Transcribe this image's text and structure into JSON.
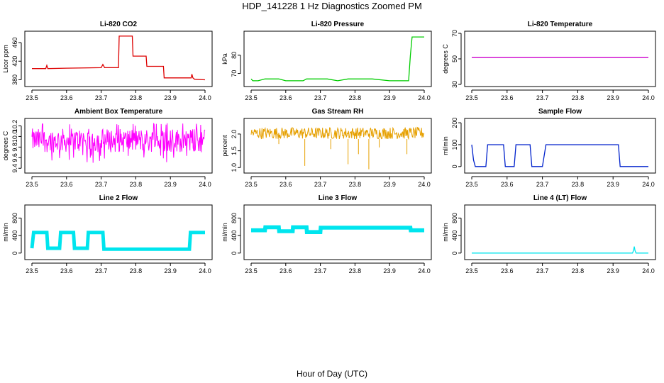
{
  "figure": {
    "title": "HDP_141228  1 Hz Diagnostics Zoomed PM",
    "xlabel": "Hour of Day (UTC)"
  },
  "chart_data": [
    {
      "type": "line",
      "title": "Li-820 CO2",
      "ylabel": "Licor ppm",
      "xlim": [
        23.5,
        24.0
      ],
      "xticks": [
        23.5,
        23.6,
        23.7,
        23.8,
        23.9,
        24.0
      ],
      "xtick_labels": [
        "23.5",
        "23.6",
        "23.7",
        "23.8",
        "23.9",
        "24.0"
      ],
      "ylim": [
        370,
        480
      ],
      "yticks": [
        380,
        420,
        460
      ],
      "ytick_labels": [
        "380",
        "420",
        "460"
      ],
      "color": "#dd0000",
      "series": [
        {
          "x": [
            23.5,
            23.54,
            23.543,
            23.546,
            23.6,
            23.7,
            23.705,
            23.71,
            23.75,
            23.752,
            23.79,
            23.792,
            23.83,
            23.832,
            23.88,
            23.882,
            23.96,
            23.962,
            23.965,
            23.97,
            24.0
          ],
          "y": [
            404,
            404,
            411,
            404,
            405,
            406,
            413,
            406,
            406,
            474,
            474,
            431,
            431,
            409,
            409,
            384,
            384,
            392,
            384,
            381,
            380
          ]
        }
      ]
    },
    {
      "type": "line",
      "title": "Li-820 Pressure",
      "ylabel": "kPa",
      "xlim": [
        23.5,
        24.0
      ],
      "xticks": [
        23.5,
        23.6,
        23.7,
        23.8,
        23.9,
        24.0
      ],
      "xtick_labels": [
        "23.5",
        "23.6",
        "23.7",
        "23.8",
        "23.9",
        "24.0"
      ],
      "ylim": [
        64,
        92
      ],
      "yticks": [
        70,
        80
      ],
      "ytick_labels": [
        "70",
        "80"
      ],
      "color": "#00cc00",
      "series": [
        {
          "x": [
            23.5,
            23.505,
            23.52,
            23.54,
            23.58,
            23.6,
            23.65,
            23.66,
            23.7,
            23.72,
            23.75,
            23.78,
            23.85,
            23.9,
            23.95,
            23.955,
            23.96,
            23.965,
            24.0
          ],
          "y": [
            67,
            66,
            66,
            67,
            67,
            66,
            66,
            67,
            67,
            67,
            66,
            67,
            67,
            66,
            66,
            66,
            80,
            90,
            90
          ]
        }
      ]
    },
    {
      "type": "line",
      "title": "Li-820 Temperature",
      "ylabel": "degrees C",
      "xlim": [
        23.5,
        24.0
      ],
      "xticks": [
        23.5,
        23.6,
        23.7,
        23.8,
        23.9,
        24.0
      ],
      "xtick_labels": [
        "23.5",
        "23.6",
        "23.7",
        "23.8",
        "23.9",
        "24.0"
      ],
      "ylim": [
        30,
        70
      ],
      "yticks": [
        30,
        50,
        70
      ],
      "ytick_labels": [
        "30",
        "50",
        "70"
      ],
      "color": "#cc00cc",
      "series": [
        {
          "x": [
            23.5,
            24.0
          ],
          "y": [
            51,
            51
          ]
        }
      ]
    },
    {
      "type": "line",
      "title": "Ambient Box Temperature",
      "ylabel": "degrees C",
      "xlim": [
        23.5,
        24.0
      ],
      "xticks": [
        23.5,
        23.6,
        23.7,
        23.8,
        23.9,
        24.0
      ],
      "xtick_labels": [
        "23.5",
        "23.6",
        "23.7",
        "23.8",
        "23.9",
        "24.0"
      ],
      "ylim": [
        9.35,
        10.3
      ],
      "yticks": [
        9.4,
        9.6,
        9.8,
        10.0,
        10.2
      ],
      "ytick_labels": [
        "9.4",
        "9.6",
        "9.8",
        "10.0",
        "10.2"
      ],
      "color": "#ff00ff",
      "noise": {
        "low": 9.7,
        "high": 10.15,
        "spike_low": 9.5,
        "spike_high": 10.25
      },
      "series": [
        {
          "x": [
            23.5,
            24.0
          ],
          "y": [
            9.92,
            9.92
          ]
        }
      ]
    },
    {
      "type": "line",
      "title": "Gas Stream RH",
      "ylabel": "percent",
      "xlim": [
        23.5,
        24.0
      ],
      "xticks": [
        23.5,
        23.6,
        23.7,
        23.8,
        23.9,
        24.0
      ],
      "xtick_labels": [
        "23.5",
        "23.6",
        "23.7",
        "23.8",
        "23.9",
        "24.0"
      ],
      "ylim": [
        0.9,
        2.4
      ],
      "yticks": [
        1.0,
        1.5,
        2.0
      ],
      "ytick_labels": [
        "1.0",
        "1.5",
        "2.0"
      ],
      "color": "#e6a000",
      "noise": {
        "low": 1.85,
        "high": 2.2
      },
      "dips": [
        {
          "x": 23.58,
          "y": 1.7
        },
        {
          "x": 23.655,
          "y": 1.05
        },
        {
          "x": 23.73,
          "y": 1.55
        },
        {
          "x": 23.78,
          "y": 1.1
        },
        {
          "x": 23.81,
          "y": 1.4
        },
        {
          "x": 23.84,
          "y": 0.95
        },
        {
          "x": 23.87,
          "y": 1.6
        },
        {
          "x": 23.95,
          "y": 1.4
        }
      ],
      "series": [
        {
          "x": [
            23.5,
            24.0
          ],
          "y": [
            2.05,
            2.05
          ]
        }
      ]
    },
    {
      "type": "line",
      "title": "Sample Flow",
      "ylabel": "ml/min",
      "xlim": [
        23.5,
        24.0
      ],
      "xticks": [
        23.5,
        23.6,
        23.7,
        23.8,
        23.9,
        24.0
      ],
      "xtick_labels": [
        "23.5",
        "23.6",
        "23.7",
        "23.8",
        "23.9",
        "24.0"
      ],
      "ylim": [
        -20,
        210
      ],
      "yticks": [
        0,
        100,
        200
      ],
      "ytick_labels": [
        "0",
        "100",
        "200"
      ],
      "color": "#0022cc",
      "series": [
        {
          "x": [
            23.5,
            23.505,
            23.51,
            23.54,
            23.545,
            23.59,
            23.595,
            23.62,
            23.625,
            23.665,
            23.67,
            23.7,
            23.71,
            23.915,
            23.92,
            24.0
          ],
          "y": [
            100,
            30,
            0,
            0,
            100,
            100,
            0,
            0,
            100,
            100,
            0,
            0,
            100,
            100,
            0,
            0
          ]
        }
      ]
    },
    {
      "type": "line",
      "title": "Line 2 Flow",
      "ylabel": "ml/min",
      "xlim": [
        23.5,
        24.0
      ],
      "xticks": [
        23.5,
        23.6,
        23.7,
        23.8,
        23.9,
        24.0
      ],
      "xtick_labels": [
        "23.5",
        "23.6",
        "23.7",
        "23.8",
        "23.9",
        "24.0"
      ],
      "ylim": [
        -100,
        1050
      ],
      "yticks": [
        0,
        400,
        800
      ],
      "ytick_labels": [
        "0",
        "400",
        "800"
      ],
      "color": "#00e5ee",
      "band": 80,
      "series": [
        {
          "x": [
            23.5,
            23.505,
            23.543,
            23.546,
            23.58,
            23.583,
            23.62,
            23.623,
            23.66,
            23.663,
            23.705,
            23.708,
            23.955,
            23.958,
            24.0
          ],
          "y": [
            110,
            470,
            470,
            110,
            110,
            470,
            470,
            110,
            110,
            470,
            470,
            90,
            90,
            470,
            470
          ]
        }
      ]
    },
    {
      "type": "line",
      "title": "Line 3 Flow",
      "ylabel": "ml/min",
      "xlim": [
        23.5,
        24.0
      ],
      "xticks": [
        23.5,
        23.6,
        23.7,
        23.8,
        23.9,
        24.0
      ],
      "xtick_labels": [
        "23.5",
        "23.6",
        "23.7",
        "23.8",
        "23.9",
        "24.0"
      ],
      "ylim": [
        -100,
        1050
      ],
      "yticks": [
        0,
        400,
        800
      ],
      "ytick_labels": [
        "0",
        "400",
        "800"
      ],
      "color": "#00e5ee",
      "band": 90,
      "series": [
        {
          "x": [
            23.5,
            23.54,
            23.541,
            23.58,
            23.581,
            23.62,
            23.621,
            23.66,
            23.661,
            23.7,
            23.701,
            23.96,
            23.961,
            24.0
          ],
          "y": [
            520,
            520,
            590,
            590,
            500,
            500,
            590,
            590,
            480,
            480,
            580,
            580,
            520,
            520
          ]
        }
      ]
    },
    {
      "type": "line",
      "title": "Line 4 (LT) Flow",
      "ylabel": "ml/min",
      "xlim": [
        23.5,
        24.0
      ],
      "xticks": [
        23.5,
        23.6,
        23.7,
        23.8,
        23.9,
        24.0
      ],
      "xtick_labels": [
        "23.5",
        "23.6",
        "23.7",
        "23.8",
        "23.9",
        "24.0"
      ],
      "ylim": [
        -100,
        1050
      ],
      "yticks": [
        0,
        400,
        800
      ],
      "ytick_labels": [
        "0",
        "400",
        "800"
      ],
      "color": "#00e5ee",
      "series": [
        {
          "x": [
            23.5,
            23.955,
            23.958,
            23.96,
            23.962,
            23.965,
            24.0
          ],
          "y": [
            0,
            0,
            60,
            150,
            60,
            0,
            0
          ]
        }
      ]
    }
  ]
}
